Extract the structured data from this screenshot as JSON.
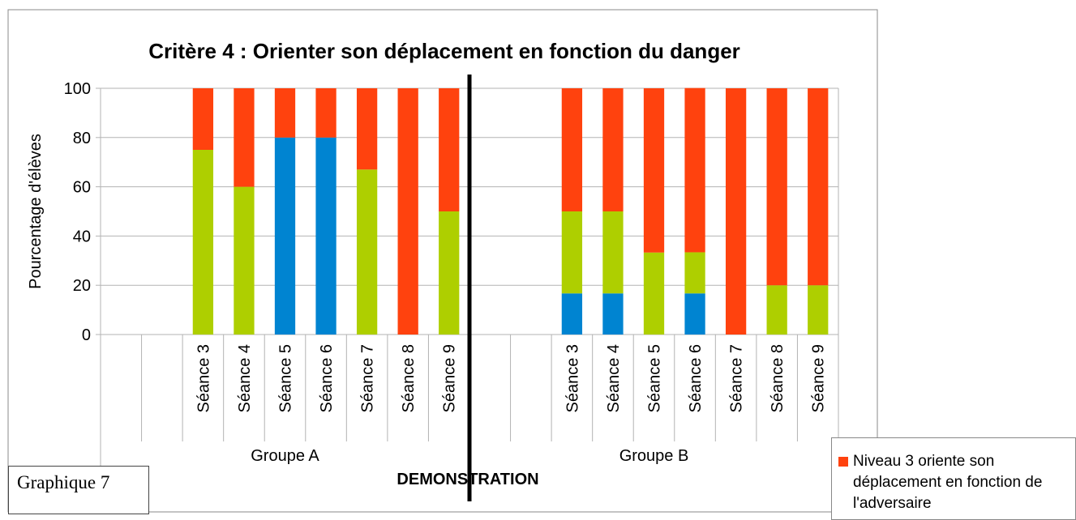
{
  "chart_data": {
    "type": "stacked-bar",
    "title": "Critère 4 : Orienter son déplacement en fonction du danger",
    "y_label": "Pourcentage d'élèves",
    "categories": [
      null,
      null,
      "Séance 3",
      "Séance 4",
      "Séance 5",
      "Séance 6",
      "Séance 7",
      "Séance 8",
      "Séance 9",
      null,
      null,
      "Séance 3",
      "Séance 4",
      "Séance 5",
      "Séance 6",
      "Séance 7",
      "Séance 8",
      "Séance 9"
    ],
    "groups": [
      "Groupe A",
      "Groupe B"
    ],
    "divider_label": "DEMONSTRATION",
    "caption": "Graphique 7",
    "series": [
      {
        "color": "#0084d1",
        "values": [
          null,
          null,
          0,
          0,
          80,
          80,
          0,
          0,
          0,
          null,
          null,
          16.7,
          16.7,
          0,
          16.7,
          0,
          0,
          0
        ]
      },
      {
        "color": "#aecf00",
        "values": [
          null,
          null,
          75,
          60,
          0,
          0,
          67,
          0,
          50,
          null,
          null,
          33.3,
          33.3,
          33.3,
          16.7,
          0,
          20,
          20
        ]
      },
      {
        "name": "Niveau 3 oriente son déplacement en fonction de l'adversaire",
        "color": "#ff420e",
        "values": [
          null,
          null,
          25,
          40,
          20,
          20,
          33,
          100,
          50,
          null,
          null,
          50,
          50,
          66.7,
          66.7,
          100,
          80,
          80
        ]
      }
    ],
    "ylim": [
      0,
      100
    ],
    "yticks": [
      0,
      20,
      40,
      60,
      80,
      100
    ],
    "grid": true
  }
}
